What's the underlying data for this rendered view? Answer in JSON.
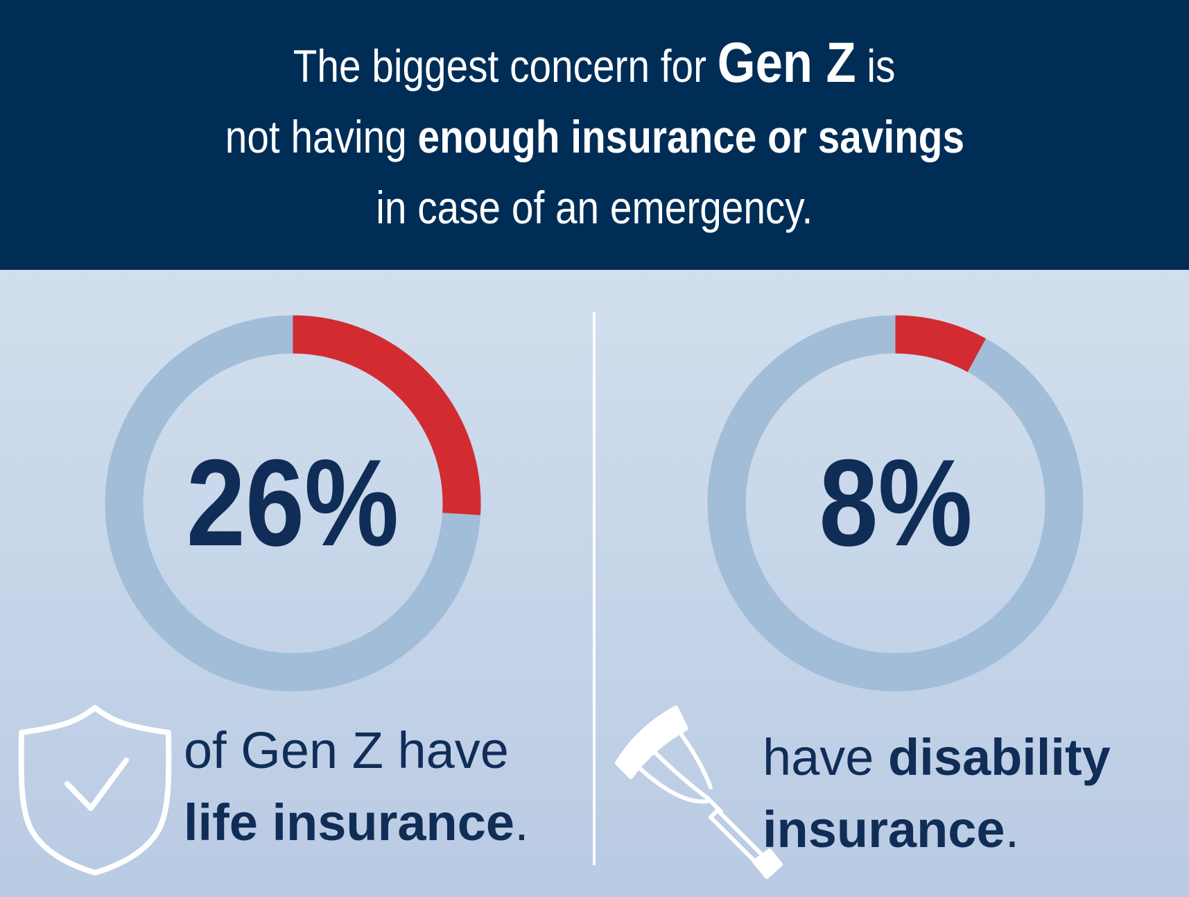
{
  "header": {
    "line1_a": "The biggest concern for ",
    "line1_b": "Gen Z",
    "line1_c": " is",
    "line2_a": "not having ",
    "line2_b": "enough insurance or savings",
    "line3": "in case of an emergency."
  },
  "colors": {
    "header_bg": "#002d56",
    "ring_track": "#a2bdd8",
    "ring_value": "#d22b31",
    "text_dark": "#0f2d57"
  },
  "icons": [
    "shield-check-icon",
    "crutch-icon"
  ],
  "chart_data": [
    {
      "type": "pie",
      "value": 26,
      "max": 100,
      "label": "26%",
      "caption_a": "of Gen Z have",
      "caption_b": "life insurance",
      "caption_c": "."
    },
    {
      "type": "pie",
      "value": 8,
      "max": 100,
      "label": "8%",
      "caption_a": "have ",
      "caption_b": "disability",
      "caption_c": "insurance",
      "caption_d": "."
    }
  ]
}
